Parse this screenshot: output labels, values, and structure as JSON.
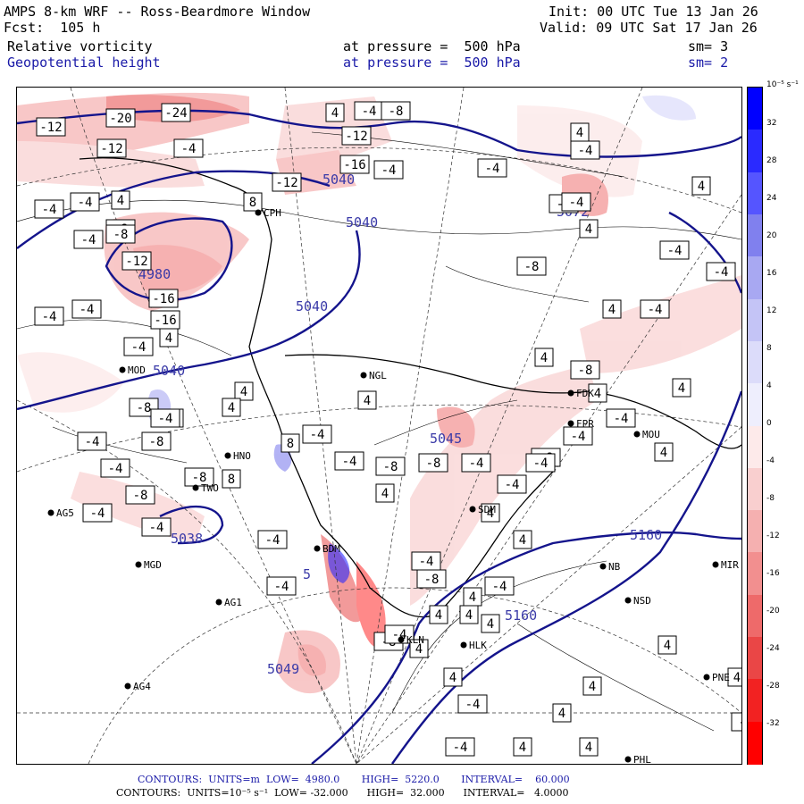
{
  "header": {
    "title": "AMPS 8-km WRF -- Ross-Beardmore Window",
    "init": "Init: 00 UTC Tue 13 Jan 26",
    "forecast": "Fcst:  105 h",
    "valid": "Valid: 09 UTC Sat 17 Jan 26",
    "field1": {
      "name": "Relative vorticity",
      "level": "at pressure =  500 hPa",
      "smooth": "sm= 3"
    },
    "field2": {
      "name": "Geopotential height",
      "level": "at pressure =  500 hPa",
      "smooth": "sm= 2"
    }
  },
  "colorbar": {
    "unit": "10⁻⁵ s⁻¹",
    "labels": [
      "32",
      "28",
      "24",
      "20",
      "16",
      "12",
      "8",
      "4",
      "0",
      "-4",
      "-8",
      "-12",
      "-16",
      "-20",
      "-24",
      "-28",
      "-32"
    ],
    "colors": {
      "positive": "#0000ff",
      "negative": "#ff0000"
    }
  },
  "stations": [
    {
      "id": "CPH"
    },
    {
      "id": "NGL"
    },
    {
      "id": "FDK"
    },
    {
      "id": "FPR"
    },
    {
      "id": "MOU"
    },
    {
      "id": "MOD"
    },
    {
      "id": "HNO"
    },
    {
      "id": "TWO"
    },
    {
      "id": "AG5"
    },
    {
      "id": "SDM"
    },
    {
      "id": "MGD"
    },
    {
      "id": "BDM"
    },
    {
      "id": "NB"
    },
    {
      "id": "MIR"
    },
    {
      "id": "AG1"
    },
    {
      "id": "NSD"
    },
    {
      "id": "KLN"
    },
    {
      "id": "HLK"
    },
    {
      "id": "AG4"
    },
    {
      "id": "PNE"
    },
    {
      "id": "PHL"
    }
  ],
  "height_labels": [
    "5040",
    "5040",
    "5040",
    "5040",
    "4980",
    "5072",
    "5045",
    "5038",
    "5160",
    "5160",
    "5049",
    "5"
  ],
  "vort_labels": [
    "-12",
    "-20",
    "-24",
    "-12",
    "-4",
    "-8",
    "-4",
    "-12",
    "-16",
    "-4",
    "-12",
    "-4",
    "-8",
    "-12",
    "-16",
    "4",
    "-4",
    "-8",
    "-16",
    "4",
    "-4",
    "4",
    "8",
    "-4",
    "-4",
    "-8",
    "-4",
    "8",
    "4",
    "-8",
    "-4",
    "-8",
    "-4",
    "-4",
    "-8",
    "-4",
    "-4",
    "-4",
    "4",
    "-8",
    "-4",
    "-4",
    "-4",
    "-8",
    "-8",
    "-4",
    "4",
    "8",
    "8",
    "-4",
    "4",
    "-4",
    "-8",
    "4",
    "-4",
    "-4",
    "-8",
    "-4",
    "4",
    "-4",
    "4",
    "-8",
    "4",
    "-4",
    "4",
    "-4",
    "4",
    "-8",
    "4",
    "-4",
    "4",
    "4",
    "-4",
    "-8",
    "-4",
    "4",
    "4",
    "4",
    "4",
    "4",
    "-4",
    "4",
    "4",
    "4",
    "-4",
    "4",
    "4",
    "4",
    "4",
    "-4",
    "-4",
    "-4",
    "4"
  ],
  "footer": {
    "line1": "CONTOURS:  UNITS=m  LOW=  4980.0       HIGH=  5220.0       INTERVAL=    60.000",
    "line2": "CONTOURS:  UNITS=10⁻⁵ s⁻¹  LOW= -32.000      HIGH=  32.000      INTERVAL=   4.0000"
  }
}
